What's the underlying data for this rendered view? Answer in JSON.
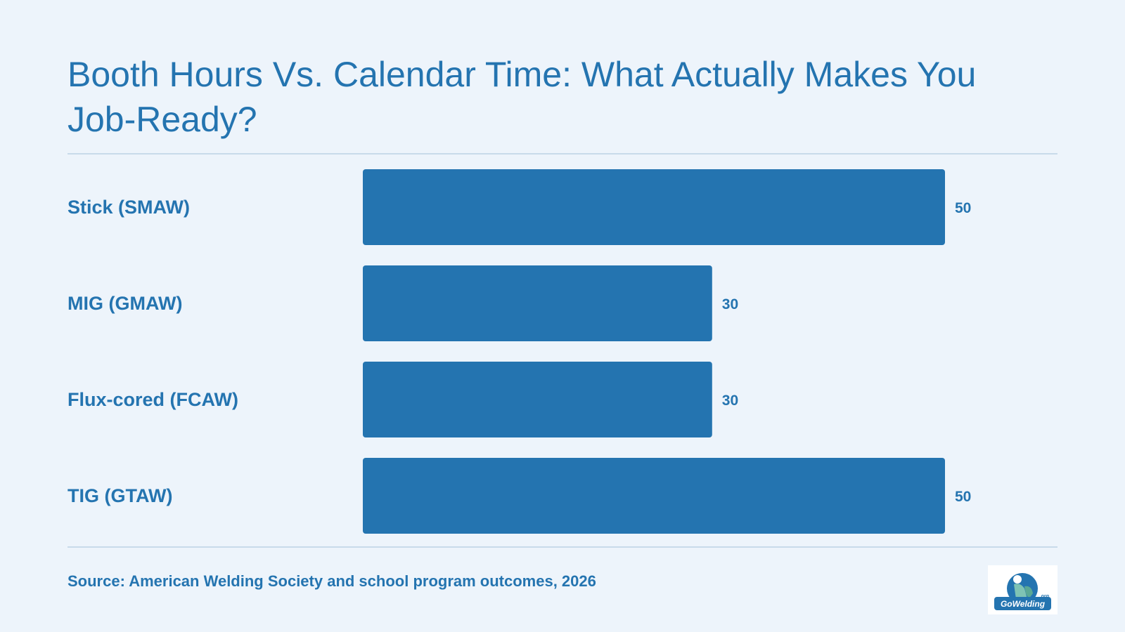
{
  "title": "Booth Hours Vs. Calendar Time: What Actually Makes You Job-Ready?",
  "source": "Source: American Welding Society and school program outcomes, 2026",
  "logo_text": "GoWelding.org",
  "colors": {
    "background": "#edf4fb",
    "bar": "#2474b0",
    "text": "#2474b0",
    "rule": "#c8dbea"
  },
  "chart_data": {
    "type": "bar",
    "orientation": "horizontal",
    "categories": [
      "Stick (SMAW)",
      "MIG (GMAW)",
      "Flux-cored (FCAW)",
      "TIG (GTAW)"
    ],
    "values": [
      50,
      30,
      30,
      50
    ],
    "data_labels": [
      "50",
      "30",
      "30",
      "50"
    ],
    "title": "",
    "xlabel": "",
    "ylabel": "",
    "xlim": [
      0,
      50
    ],
    "grid": false,
    "legend": "none"
  }
}
